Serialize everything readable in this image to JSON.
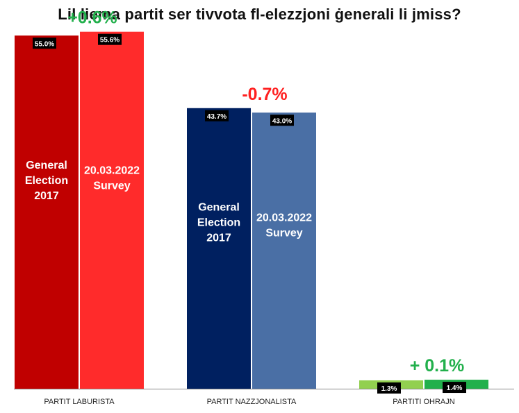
{
  "chart_data": {
    "type": "bar",
    "title": "Lil liema partit ser tivvota fl-elezzjoni ġenerali li jmiss?",
    "categories": [
      "PARTIT LABURISTA",
      "PARTIT NAZZJONALISTA",
      "PARTITI OHRAJN"
    ],
    "ylim": [
      0,
      60
    ],
    "grid": false,
    "series": [
      {
        "name": "General Election 2017",
        "values": [
          55.0,
          43.7,
          1.3
        ],
        "value_labels": [
          "55.0%",
          "43.7%",
          "1.3%"
        ],
        "bar_text": [
          "General",
          "Election",
          "2017"
        ],
        "colors": [
          "#C00000",
          "#002060",
          "#92D050"
        ]
      },
      {
        "name": "20.03.2022 Survey",
        "values": [
          55.6,
          43.0,
          1.4
        ],
        "value_labels": [
          "55.6%",
          "43.0%",
          "1.4%"
        ],
        "bar_text": [
          "20.03.2022",
          "Survey"
        ],
        "colors": [
          "#FF2B2B",
          "#4A6FA5",
          "#22B04C"
        ]
      }
    ],
    "annotations": [
      {
        "category": "PARTIT LABURISTA",
        "text": "+0.6%",
        "color": "#22B04C"
      },
      {
        "category": "PARTIT NAZZJONALISTA",
        "text": "-0.7%",
        "color": "#FF2020"
      },
      {
        "category": "PARTITI OHRAJN",
        "text": "+ 0.1%",
        "color": "#22B04C"
      }
    ]
  }
}
